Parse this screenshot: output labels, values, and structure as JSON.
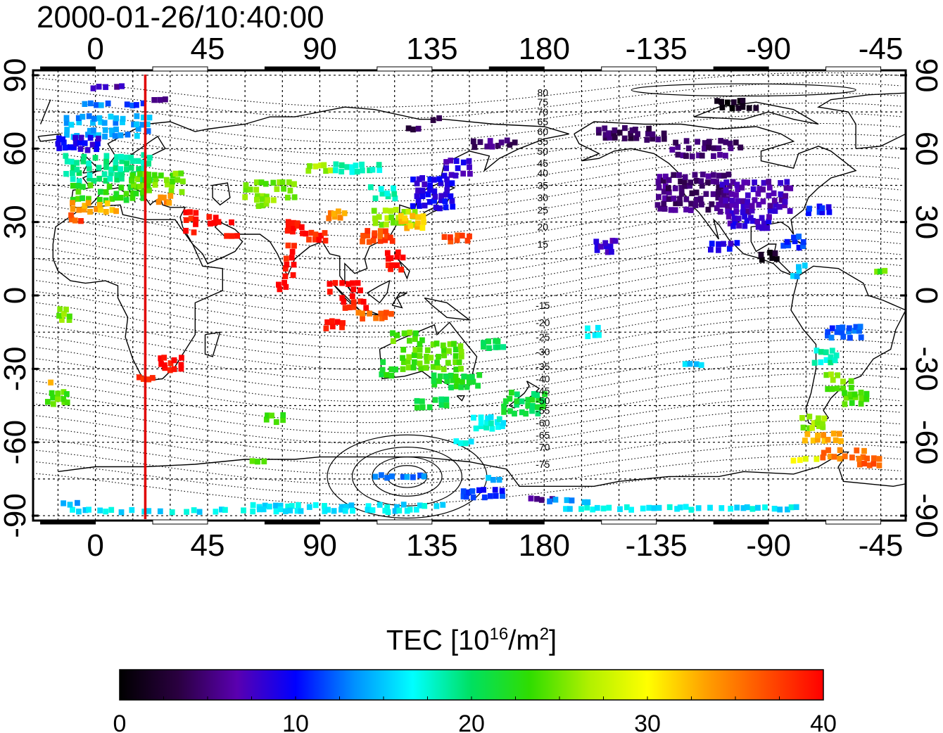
{
  "title": "2000-01-26/10:40:00",
  "map": {
    "x_ticks": [
      0,
      45,
      90,
      135,
      180,
      -135,
      -90,
      -45
    ],
    "x_tick_labels": [
      "0",
      "45",
      "90",
      "135",
      "180",
      "-135",
      "-90",
      "-45"
    ],
    "y_ticks": [
      90,
      60,
      30,
      0,
      -30,
      -60,
      -90
    ],
    "y_tick_labels": [
      "90",
      "60",
      "30",
      "0",
      "-30",
      "-60",
      "-90"
    ],
    "lon_range_east_deg": [
      -25,
      325
    ],
    "lat_range_deg": [
      -92,
      92
    ],
    "grid": "dotted, 15 degrees",
    "marker_line_lon": 20,
    "marker_line_color": "#e00000",
    "contour_labels": [
      {
        "text": "80",
        "lat": 83
      },
      {
        "text": "75",
        "lat": 79
      },
      {
        "text": "70",
        "lat": 75
      },
      {
        "text": "65",
        "lat": 71
      },
      {
        "text": "60",
        "lat": 67
      },
      {
        "text": "55",
        "lat": 63
      },
      {
        "text": "50",
        "lat": 59
      },
      {
        "text": "45",
        "lat": 54
      },
      {
        "text": "40",
        "lat": 50
      },
      {
        "text": "35",
        "lat": 45
      },
      {
        "text": "30",
        "lat": 40
      },
      {
        "text": "25",
        "lat": 35
      },
      {
        "text": "20",
        "lat": 28
      },
      {
        "text": "15",
        "lat": 21
      },
      {
        "text": "-15",
        "lat": -4
      },
      {
        "text": "-20",
        "lat": -11
      },
      {
        "text": "-25",
        "lat": -17
      },
      {
        "text": "-30",
        "lat": -23
      },
      {
        "text": "-35",
        "lat": -29
      },
      {
        "text": "-40",
        "lat": -34
      },
      {
        "text": "-45",
        "lat": -39
      },
      {
        "text": "-50",
        "lat": -43
      },
      {
        "text": "-55",
        "lat": -47
      },
      {
        "text": "-60",
        "lat": -52
      },
      {
        "text": "-65",
        "lat": -57
      },
      {
        "text": "-70",
        "lat": -62
      },
      {
        "text": "-75",
        "lat": -69
      }
    ],
    "tec_clusters": [
      {
        "lon": 5,
        "lat": 85,
        "w": 18,
        "h": 3,
        "tec": 7
      },
      {
        "lon": 0,
        "lat": 78,
        "w": 12,
        "h": 3,
        "tec": 13
      },
      {
        "lon": 16,
        "lat": 78,
        "w": 8,
        "h": 3,
        "tec": 11
      },
      {
        "lon": 26,
        "lat": 80,
        "w": 6,
        "h": 3,
        "tec": 6
      },
      {
        "lon": 5,
        "lat": 69,
        "w": 35,
        "h": 10,
        "tec": 14
      },
      {
        "lon": -7,
        "lat": 62,
        "w": 18,
        "h": 6,
        "tec": 9
      },
      {
        "lon": 5,
        "lat": 52,
        "w": 35,
        "h": 12,
        "tec": 19
      },
      {
        "lon": 5,
        "lat": 42,
        "w": 30,
        "h": 8,
        "tec": 23
      },
      {
        "lon": 0,
        "lat": 36,
        "w": 20,
        "h": 5,
        "tec": 33
      },
      {
        "lon": -8,
        "lat": 32,
        "w": 6,
        "h": 4,
        "tec": 37
      },
      {
        "lon": 25,
        "lat": 46,
        "w": 22,
        "h": 9,
        "tec": 25
      },
      {
        "lon": 30,
        "lat": 39,
        "w": 10,
        "h": 5,
        "tec": 34
      },
      {
        "lon": 38,
        "lat": 30,
        "w": 6,
        "h": 10,
        "tec": 39
      },
      {
        "lon": 50,
        "lat": 31,
        "w": 10,
        "h": 5,
        "tec": 40
      },
      {
        "lon": 55,
        "lat": 25,
        "w": 6,
        "h": 5,
        "tec": 40
      },
      {
        "lon": 70,
        "lat": 43,
        "w": 22,
        "h": 8,
        "tec": 25
      },
      {
        "lon": 68,
        "lat": 38,
        "w": 8,
        "h": 4,
        "tec": 26
      },
      {
        "lon": 90,
        "lat": 52,
        "w": 10,
        "h": 4,
        "tec": 26
      },
      {
        "lon": 105,
        "lat": 52,
        "w": 20,
        "h": 4,
        "tec": 18
      },
      {
        "lon": 80,
        "lat": 28,
        "w": 8,
        "h": 6,
        "tec": 40
      },
      {
        "lon": 88,
        "lat": 24,
        "w": 10,
        "h": 4,
        "tec": 39
      },
      {
        "lon": 78,
        "lat": 14,
        "w": 5,
        "h": 14,
        "tec": 39
      },
      {
        "lon": 75,
        "lat": 4,
        "w": 4,
        "h": 4,
        "tec": 40
      },
      {
        "lon": 97,
        "lat": 33,
        "w": 8,
        "h": 4,
        "tec": 34
      },
      {
        "lon": 115,
        "lat": 42,
        "w": 12,
        "h": 6,
        "tec": 18
      },
      {
        "lon": 135,
        "lat": 42,
        "w": 18,
        "h": 14,
        "tec": 9
      },
      {
        "lon": 145,
        "lat": 52,
        "w": 12,
        "h": 8,
        "tec": 8
      },
      {
        "lon": 120,
        "lat": 32,
        "w": 18,
        "h": 8,
        "tec": 26
      },
      {
        "lon": 127,
        "lat": 30,
        "w": 12,
        "h": 6,
        "tec": 32
      },
      {
        "lon": 113,
        "lat": 24,
        "w": 14,
        "h": 6,
        "tec": 37
      },
      {
        "lon": 120,
        "lat": 14,
        "w": 8,
        "h": 10,
        "tec": 40
      },
      {
        "lon": 145,
        "lat": 23,
        "w": 12,
        "h": 4,
        "tec": 37
      },
      {
        "lon": 140,
        "lat": 72,
        "w": 10,
        "h": 3,
        "tec": 4
      },
      {
        "lon": 128,
        "lat": 68,
        "w": 6,
        "h": 3,
        "tec": 4
      },
      {
        "lon": 160,
        "lat": 62,
        "w": 18,
        "h": 4,
        "tec": 5
      },
      {
        "lon": 100,
        "lat": 2,
        "w": 14,
        "h": 8,
        "tec": 40
      },
      {
        "lon": 104,
        "lat": -4,
        "w": 10,
        "h": 4,
        "tec": 39
      },
      {
        "lon": 112,
        "lat": -8,
        "w": 16,
        "h": 4,
        "tec": 36
      },
      {
        "lon": 96,
        "lat": -12,
        "w": 8,
        "h": 4,
        "tec": 40
      },
      {
        "lon": 125,
        "lat": -17,
        "w": 14,
        "h": 5,
        "tec": 24
      },
      {
        "lon": 135,
        "lat": -25,
        "w": 25,
        "h": 12,
        "tec": 24
      },
      {
        "lon": 118,
        "lat": -30,
        "w": 8,
        "h": 8,
        "tec": 22
      },
      {
        "lon": 145,
        "lat": -35,
        "w": 20,
        "h": 6,
        "tec": 22
      },
      {
        "lon": 135,
        "lat": -44,
        "w": 14,
        "h": 5,
        "tec": 21
      },
      {
        "lon": 160,
        "lat": -20,
        "w": 10,
        "h": 4,
        "tec": 20
      },
      {
        "lon": 172,
        "lat": -44,
        "w": 18,
        "h": 10,
        "tec": 21
      },
      {
        "lon": 158,
        "lat": -52,
        "w": 14,
        "h": 6,
        "tec": 17
      },
      {
        "lon": 148,
        "lat": -60,
        "w": 8,
        "h": 3,
        "tec": 16
      },
      {
        "lon": 72,
        "lat": -50,
        "w": 8,
        "h": 5,
        "tec": 24
      },
      {
        "lon": 68,
        "lat": -68,
        "w": 12,
        "h": 3,
        "tec": 24
      },
      {
        "lon": 30,
        "lat": -28,
        "w": 10,
        "h": 6,
        "tec": 40
      },
      {
        "lon": 20,
        "lat": -34,
        "w": 8,
        "h": 3,
        "tec": 39
      },
      {
        "lon": -12,
        "lat": -8,
        "w": 6,
        "h": 6,
        "tec": 25
      },
      {
        "lon": -15,
        "lat": -42,
        "w": 10,
        "h": 6,
        "tec": 24
      },
      {
        "lon": -18,
        "lat": -36,
        "w": 3,
        "h": 3,
        "tec": 33
      },
      {
        "lon": 100,
        "lat": -86,
        "w": 80,
        "h": 3,
        "tec": 16
      },
      {
        "lon": 155,
        "lat": -81,
        "w": 18,
        "h": 4,
        "tec": 11
      },
      {
        "lon": 178,
        "lat": -83,
        "w": 14,
        "h": 3,
        "tec": 6
      },
      {
        "lon": 60,
        "lat": -88,
        "w": 140,
        "h": 2,
        "tec": 16
      },
      {
        "lon": -10,
        "lat": -85,
        "w": 12,
        "h": 2,
        "tec": 14
      },
      {
        "lon": 235,
        "lat": -87,
        "w": 100,
        "h": 2,
        "tec": 16
      },
      {
        "lon": 190,
        "lat": -84,
        "w": 18,
        "h": 2,
        "tec": 14
      },
      {
        "lon": 122,
        "lat": -74,
        "w": 22,
        "h": 2,
        "tec": 13
      },
      {
        "lon": 160,
        "lat": -75,
        "w": 12,
        "h": 2,
        "tec": 15
      },
      {
        "lon": 215,
        "lat": 66,
        "w": 28,
        "h": 6,
        "tec": 4
      },
      {
        "lon": 245,
        "lat": 60,
        "w": 30,
        "h": 8,
        "tec": 5
      },
      {
        "lon": 258,
        "lat": 78,
        "w": 20,
        "h": 5,
        "tec": 1
      },
      {
        "lon": 240,
        "lat": 42,
        "w": 30,
        "h": 16,
        "tec": 5
      },
      {
        "lon": 265,
        "lat": 40,
        "w": 30,
        "h": 14,
        "tec": 7
      },
      {
        "lon": 262,
        "lat": 30,
        "w": 18,
        "h": 6,
        "tec": 8
      },
      {
        "lon": 252,
        "lat": 20,
        "w": 12,
        "h": 5,
        "tec": 9
      },
      {
        "lon": 270,
        "lat": 16,
        "w": 8,
        "h": 5,
        "tec": 2
      },
      {
        "lon": 280,
        "lat": 22,
        "w": 10,
        "h": 6,
        "tec": 11
      },
      {
        "lon": 282,
        "lat": 10,
        "w": 6,
        "h": 6,
        "tec": 15
      },
      {
        "lon": 290,
        "lat": 35,
        "w": 10,
        "h": 4,
        "tec": 10
      },
      {
        "lon": 205,
        "lat": 20,
        "w": 10,
        "h": 6,
        "tec": 8
      },
      {
        "lon": 200,
        "lat": -15,
        "w": 6,
        "h": 5,
        "tec": 17
      },
      {
        "lon": 240,
        "lat": -28,
        "w": 8,
        "h": 3,
        "tec": 15
      },
      {
        "lon": 300,
        "lat": -15,
        "w": 16,
        "h": 6,
        "tec": 12
      },
      {
        "lon": 293,
        "lat": -25,
        "w": 10,
        "h": 6,
        "tec": 18
      },
      {
        "lon": 298,
        "lat": -35,
        "w": 12,
        "h": 8,
        "tec": 25
      },
      {
        "lon": 305,
        "lat": -42,
        "w": 10,
        "h": 6,
        "tec": 24
      },
      {
        "lon": 288,
        "lat": -52,
        "w": 10,
        "h": 6,
        "tec": 26
      },
      {
        "lon": 292,
        "lat": -58,
        "w": 16,
        "h": 4,
        "tec": 33
      },
      {
        "lon": 300,
        "lat": -65,
        "w": 18,
        "h": 5,
        "tec": 35
      },
      {
        "lon": 285,
        "lat": -67,
        "w": 12,
        "h": 3,
        "tec": 30
      },
      {
        "lon": 310,
        "lat": -68,
        "w": 10,
        "h": 5,
        "tec": 36
      },
      {
        "lon": 315,
        "lat": 10,
        "w": 6,
        "h": 3,
        "tec": 24
      }
    ]
  },
  "colorbar": {
    "label_prefix": "TEC  [10",
    "label_sup1": "16",
    "label_mid": "/m",
    "label_sup2": "2",
    "label_suffix": "]",
    "min": 0,
    "max": 40,
    "ticks": [
      0,
      10,
      20,
      30,
      40
    ],
    "tick_labels": [
      "0",
      "10",
      "20",
      "30",
      "40"
    ],
    "stops": [
      "#000000",
      "#2a0040",
      "#5a00b0",
      "#0000ff",
      "#0090ff",
      "#00ffff",
      "#00e060",
      "#30dd00",
      "#b0f000",
      "#ffff00",
      "#ffa000",
      "#ff5000",
      "#ff0000"
    ]
  },
  "colors": {
    "land_outline": "#000000",
    "grid": "#000000",
    "contours": "#000000"
  }
}
